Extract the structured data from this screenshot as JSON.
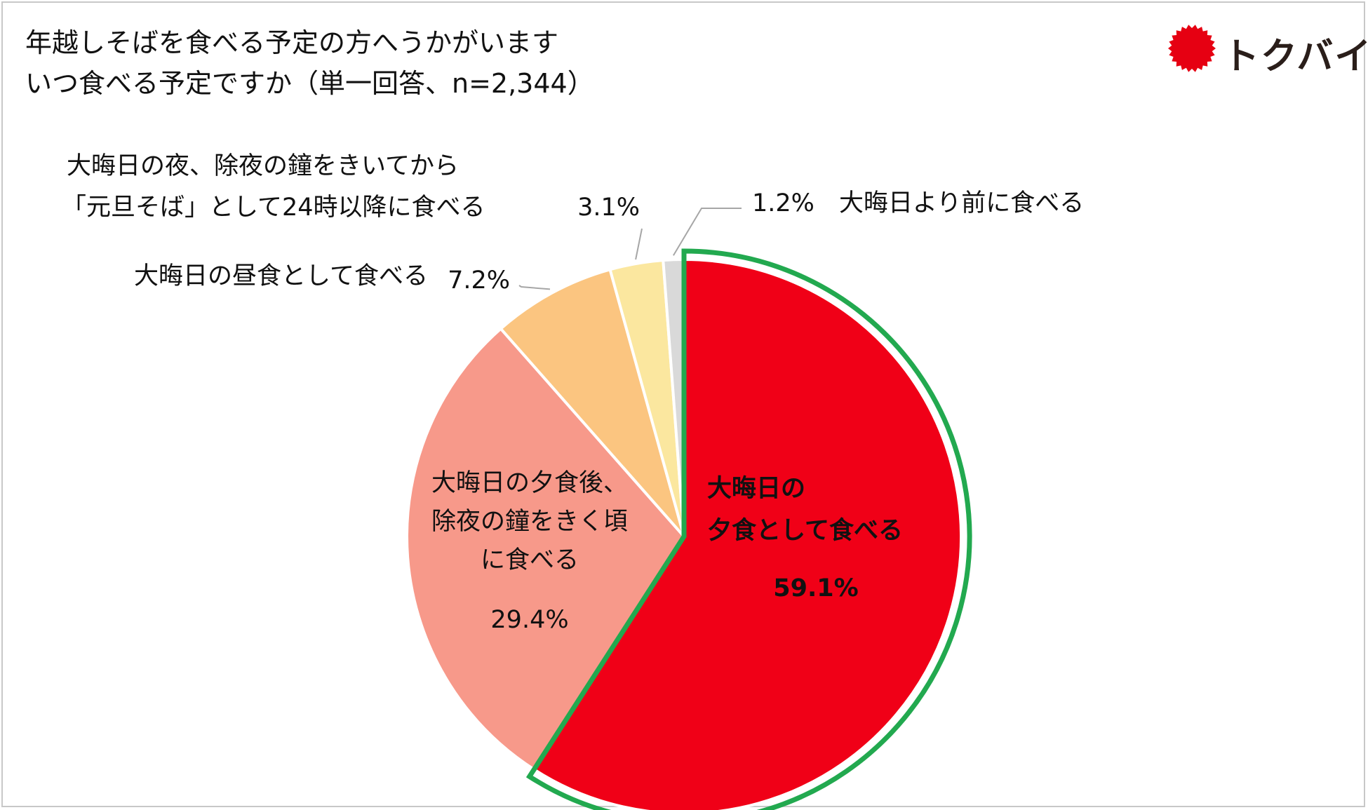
{
  "title": {
    "line1": "年越しそばを食べる予定の方へうかがいます",
    "line2": "いつ食べる予定ですか（単一回答、n=2,344）"
  },
  "logo": {
    "text": "トクバイ",
    "color": "#e60012",
    "icon": "red-sun-burst-icon"
  },
  "highlight_color": "#22a94f",
  "chart_data": {
    "type": "pie",
    "n": 2344,
    "start": "12 o'clock",
    "direction": "clockwise",
    "highlighted_slice": 0,
    "slices": [
      {
        "label_lines": [
          "大晦日の",
          "夕食として食べる"
        ],
        "value": 59.1,
        "value_label": "59.1%",
        "color": "#f00017",
        "label_position": "inside",
        "bold": true
      },
      {
        "label_lines": [
          "大晦日の夕食後、",
          "除夜の鐘をきく頃",
          "に食べる"
        ],
        "value": 29.4,
        "value_label": "29.4%",
        "color": "#f7998a",
        "label_position": "inside",
        "bold": false
      },
      {
        "label_lines": [
          "大晦日の昼食として食べる"
        ],
        "value": 7.2,
        "value_label": "7.2%",
        "color": "#fbc580",
        "label_position": "outside-left",
        "bold": false
      },
      {
        "label_lines": [
          "大晦日の夜、除夜の鐘をきいてから",
          "「元旦そば」として24時以降に食べる"
        ],
        "value": 3.1,
        "value_label": "3.1%",
        "color": "#fbe79f",
        "label_position": "outside-top",
        "bold": false
      },
      {
        "label_lines": [
          "大晦日より前に食べる"
        ],
        "value": 1.2,
        "value_label": "1.2%",
        "color": "#d9d9d9",
        "label_position": "outside-right",
        "bold": false
      }
    ]
  }
}
